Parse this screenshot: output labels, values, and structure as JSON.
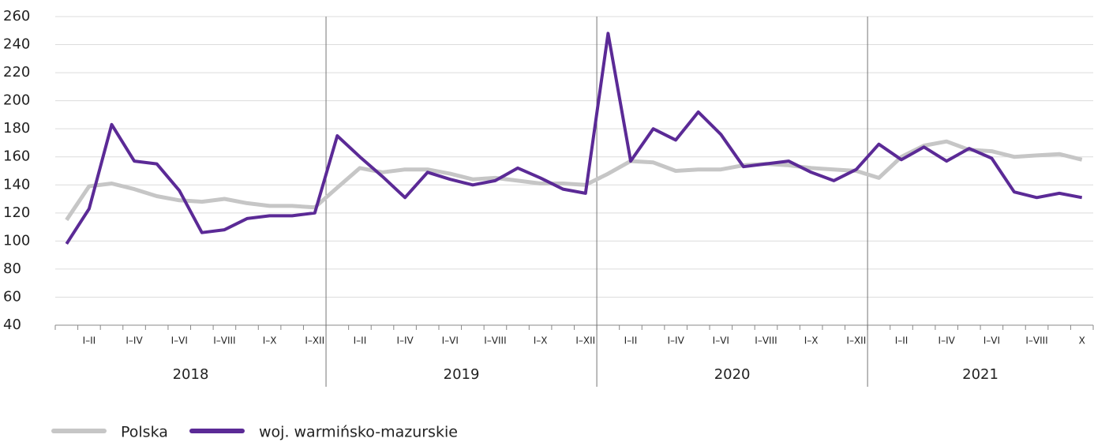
{
  "chart_data": {
    "type": "line",
    "categories": [
      null,
      "I–II",
      null,
      "I–IV",
      null,
      "I–VI",
      null,
      "I–VIII",
      null,
      "I–X",
      null,
      "I–XII",
      null,
      "I–II",
      null,
      "I–IV",
      null,
      "I–VI",
      null,
      "I–VIII",
      null,
      "I–X",
      null,
      "I–XII",
      null,
      "I–II",
      null,
      "I–IV",
      null,
      "I–VI",
      null,
      "I–VIII",
      null,
      "I–X",
      null,
      "I–XII",
      null,
      "I–II",
      null,
      "I–IV",
      null,
      "I–VI",
      null,
      "I–VIII",
      null,
      "X"
    ],
    "groups": [
      {
        "name": "2018",
        "count": 12
      },
      {
        "name": "2019",
        "count": 12
      },
      {
        "name": "2020",
        "count": 12
      },
      {
        "name": "2021",
        "count": 10
      }
    ],
    "series": [
      {
        "name": "Polska",
        "color": "#c6c6c6",
        "values": [
          115,
          139,
          141,
          137,
          132,
          129,
          128,
          130,
          127,
          125,
          125,
          124,
          138,
          152,
          149,
          151,
          151,
          148,
          144,
          145,
          143,
          141,
          141,
          140,
          148,
          157,
          156,
          150,
          151,
          151,
          154,
          155,
          154,
          152,
          151,
          150,
          145,
          160,
          168,
          171,
          165,
          164,
          160,
          161,
          162,
          158
        ]
      },
      {
        "name": "woj. warmińsko-mazurskie",
        "color": "#5b2a96",
        "values": [
          98,
          123,
          183,
          157,
          155,
          136,
          106,
          108,
          116,
          118,
          118,
          120,
          175,
          160,
          146,
          131,
          149,
          144,
          140,
          143,
          152,
          145,
          137,
          134,
          248,
          157,
          180,
          172,
          192,
          176,
          153,
          155,
          157,
          149,
          143,
          151,
          169,
          158,
          167,
          157,
          166,
          159,
          135,
          131,
          134,
          131
        ]
      }
    ],
    "ylim": [
      40,
      260
    ],
    "yticks": [
      40,
      60,
      80,
      100,
      120,
      140,
      160,
      180,
      200,
      220,
      240,
      260
    ],
    "grid": true
  }
}
